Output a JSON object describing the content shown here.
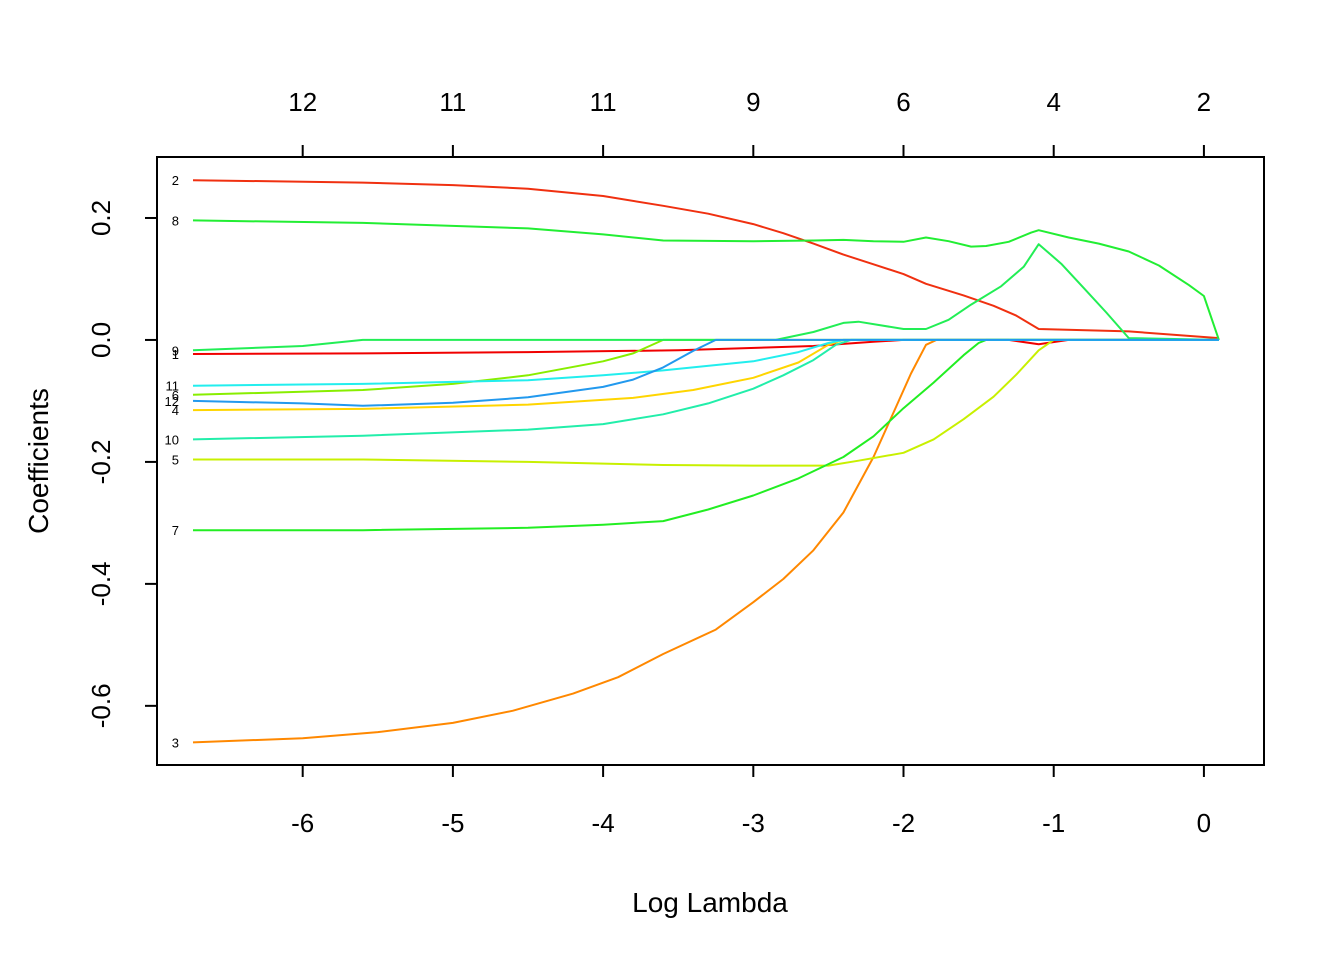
{
  "chart_data": {
    "type": "line",
    "title": "",
    "xlabel": "Log Lambda",
    "ylabel": "Coefficients",
    "xlim": [
      -6.97,
      0.4
    ],
    "ylim": [
      -0.697,
      0.3
    ],
    "x_ticks": [
      -6,
      -5,
      -4,
      -3,
      -2,
      -1,
      0
    ],
    "x_tick_labels": [
      "-6",
      "-5",
      "-4",
      "-3",
      "-2",
      "-1",
      "0"
    ],
    "y_ticks": [
      -0.6,
      -0.4,
      -0.2,
      0.0,
      0.2
    ],
    "y_tick_labels": [
      "-0.6",
      "-0.4",
      "-0.2",
      "0.0",
      "0.2"
    ],
    "top_axis": {
      "x": [
        -6,
        -5,
        -4,
        -3,
        -2,
        -1,
        0
      ],
      "labels": [
        "12",
        "11",
        "11",
        "9",
        "6",
        "4",
        "2"
      ]
    },
    "grid": false,
    "series": [
      {
        "label": "1",
        "color": "#f00000",
        "points": [
          [
            -6.73,
            -0.023
          ],
          [
            -5.6,
            -0.022
          ],
          [
            -4.5,
            -0.02
          ],
          [
            -3.5,
            -0.017
          ],
          [
            -2.6,
            -0.01
          ],
          [
            -2.2,
            -0.003
          ],
          [
            -2.0,
            0.0
          ],
          [
            -1.3,
            0.0
          ],
          [
            -1.1,
            -0.007
          ],
          [
            -0.9,
            0.0
          ],
          [
            0.1,
            0.0
          ]
        ]
      },
      {
        "label": "2",
        "color": "#f03010",
        "points": [
          [
            -6.73,
            0.262
          ],
          [
            -5.6,
            0.258
          ],
          [
            -5.0,
            0.254
          ],
          [
            -4.5,
            0.248
          ],
          [
            -4.0,
            0.236
          ],
          [
            -3.6,
            0.22
          ],
          [
            -3.3,
            0.207
          ],
          [
            -3.0,
            0.19
          ],
          [
            -2.8,
            0.175
          ],
          [
            -2.6,
            0.158
          ],
          [
            -2.4,
            0.14
          ],
          [
            -2.2,
            0.124
          ],
          [
            -2.0,
            0.108
          ],
          [
            -1.85,
            0.092
          ],
          [
            -1.6,
            0.073
          ],
          [
            -1.4,
            0.056
          ],
          [
            -1.25,
            0.04
          ],
          [
            -1.1,
            0.018
          ],
          [
            -0.5,
            0.014
          ],
          [
            0.1,
            0.003
          ]
        ]
      },
      {
        "label": "3",
        "color": "#ff8800",
        "points": [
          [
            -6.73,
            -0.66
          ],
          [
            -6.0,
            -0.653
          ],
          [
            -5.5,
            -0.643
          ],
          [
            -5.0,
            -0.628
          ],
          [
            -4.6,
            -0.608
          ],
          [
            -4.2,
            -0.58
          ],
          [
            -3.9,
            -0.553
          ],
          [
            -3.6,
            -0.515
          ],
          [
            -3.25,
            -0.475
          ],
          [
            -3.0,
            -0.43
          ],
          [
            -2.8,
            -0.392
          ],
          [
            -2.6,
            -0.345
          ],
          [
            -2.4,
            -0.283
          ],
          [
            -2.2,
            -0.192
          ],
          [
            -2.05,
            -0.11
          ],
          [
            -1.95,
            -0.055
          ],
          [
            -1.85,
            -0.008
          ],
          [
            -1.78,
            0.0
          ],
          [
            0.1,
            0.0
          ]
        ]
      },
      {
        "label": "4",
        "color": "#ffd500",
        "points": [
          [
            -6.73,
            -0.115
          ],
          [
            -5.6,
            -0.113
          ],
          [
            -4.5,
            -0.106
          ],
          [
            -3.8,
            -0.095
          ],
          [
            -3.4,
            -0.082
          ],
          [
            -3.0,
            -0.062
          ],
          [
            -2.7,
            -0.037
          ],
          [
            -2.5,
            -0.008
          ],
          [
            -2.4,
            0.0
          ],
          [
            0.1,
            0.0
          ]
        ]
      },
      {
        "label": "5",
        "color": "#c8f000",
        "points": [
          [
            -6.73,
            -0.196
          ],
          [
            -5.6,
            -0.196
          ],
          [
            -4.5,
            -0.2
          ],
          [
            -3.6,
            -0.205
          ],
          [
            -3.0,
            -0.206
          ],
          [
            -2.5,
            -0.206
          ],
          [
            -2.3,
            -0.198
          ],
          [
            -2.0,
            -0.185
          ],
          [
            -1.8,
            -0.163
          ],
          [
            -1.6,
            -0.13
          ],
          [
            -1.4,
            -0.093
          ],
          [
            -1.25,
            -0.057
          ],
          [
            -1.1,
            -0.017
          ],
          [
            -1.0,
            0.0
          ],
          [
            0.1,
            0.0
          ]
        ]
      },
      {
        "label": "6",
        "color": "#88ee00",
        "points": [
          [
            -6.73,
            -0.09
          ],
          [
            -5.6,
            -0.082
          ],
          [
            -5.0,
            -0.072
          ],
          [
            -4.5,
            -0.058
          ],
          [
            -4.0,
            -0.035
          ],
          [
            -3.8,
            -0.022
          ],
          [
            -3.6,
            0.0
          ],
          [
            0.1,
            0.0
          ]
        ]
      },
      {
        "label": "7",
        "color": "#22ee22",
        "points": [
          [
            -6.73,
            -0.312
          ],
          [
            -5.6,
            -0.312
          ],
          [
            -4.5,
            -0.308
          ],
          [
            -4.0,
            -0.303
          ],
          [
            -3.6,
            -0.297
          ],
          [
            -3.3,
            -0.278
          ],
          [
            -3.0,
            -0.255
          ],
          [
            -2.7,
            -0.227
          ],
          [
            -2.4,
            -0.192
          ],
          [
            -2.2,
            -0.158
          ],
          [
            -2.0,
            -0.112
          ],
          [
            -1.8,
            -0.07
          ],
          [
            -1.6,
            -0.025
          ],
          [
            -1.5,
            -0.005
          ],
          [
            -1.45,
            0.0
          ],
          [
            0.1,
            0.0
          ]
        ]
      },
      {
        "label": "8",
        "color": "#22ee33",
        "points": [
          [
            -6.73,
            0.196
          ],
          [
            -5.6,
            0.192
          ],
          [
            -4.5,
            0.183
          ],
          [
            -4.0,
            0.173
          ],
          [
            -3.6,
            0.163
          ],
          [
            -3.0,
            0.162
          ],
          [
            -2.6,
            0.163
          ],
          [
            -2.4,
            0.164
          ],
          [
            -2.2,
            0.162
          ],
          [
            -2.0,
            0.161
          ],
          [
            -1.85,
            0.168
          ],
          [
            -1.7,
            0.162
          ],
          [
            -1.55,
            0.153
          ],
          [
            -1.45,
            0.154
          ],
          [
            -1.3,
            0.161
          ],
          [
            -1.15,
            0.176
          ],
          [
            -1.1,
            0.18
          ],
          [
            -0.9,
            0.168
          ],
          [
            -0.7,
            0.158
          ],
          [
            -0.5,
            0.145
          ],
          [
            -0.3,
            0.122
          ],
          [
            -0.1,
            0.09
          ],
          [
            0.0,
            0.072
          ],
          [
            0.1,
            0.0
          ]
        ]
      },
      {
        "label": "9",
        "color": "#22ee55",
        "points": [
          [
            -6.73,
            -0.017
          ],
          [
            -6.0,
            -0.01
          ],
          [
            -5.6,
            0.0
          ],
          [
            -2.85,
            0.0
          ],
          [
            -2.6,
            0.013
          ],
          [
            -2.4,
            0.028
          ],
          [
            -2.3,
            0.03
          ],
          [
            -2.0,
            0.018
          ],
          [
            -1.85,
            0.018
          ],
          [
            -1.7,
            0.033
          ],
          [
            -1.55,
            0.058
          ],
          [
            -1.35,
            0.088
          ],
          [
            -1.2,
            0.12
          ],
          [
            -1.1,
            0.157
          ],
          [
            -0.95,
            0.125
          ],
          [
            -0.8,
            0.085
          ],
          [
            -0.65,
            0.045
          ],
          [
            -0.5,
            0.003
          ],
          [
            0.1,
            0.0
          ]
        ]
      },
      {
        "label": "10",
        "color": "#22eeaa",
        "points": [
          [
            -6.73,
            -0.163
          ],
          [
            -5.6,
            -0.157
          ],
          [
            -4.5,
            -0.147
          ],
          [
            -4.0,
            -0.138
          ],
          [
            -3.6,
            -0.122
          ],
          [
            -3.3,
            -0.104
          ],
          [
            -3.0,
            -0.08
          ],
          [
            -2.8,
            -0.058
          ],
          [
            -2.6,
            -0.033
          ],
          [
            -2.45,
            -0.008
          ],
          [
            -2.35,
            0.0
          ],
          [
            0.1,
            0.0
          ]
        ]
      },
      {
        "label": "11",
        "color": "#22eeee",
        "points": [
          [
            -6.73,
            -0.075
          ],
          [
            -5.6,
            -0.072
          ],
          [
            -4.5,
            -0.066
          ],
          [
            -4.0,
            -0.058
          ],
          [
            -3.6,
            -0.05
          ],
          [
            -3.0,
            -0.035
          ],
          [
            -2.7,
            -0.02
          ],
          [
            -2.5,
            -0.005
          ],
          [
            -2.4,
            0.0
          ],
          [
            0.1,
            0.0
          ]
        ]
      },
      {
        "label": "12",
        "color": "#2299ee",
        "points": [
          [
            -6.73,
            -0.1
          ],
          [
            -6.0,
            -0.104
          ],
          [
            -5.6,
            -0.108
          ],
          [
            -5.0,
            -0.103
          ],
          [
            -4.5,
            -0.094
          ],
          [
            -4.0,
            -0.077
          ],
          [
            -3.8,
            -0.065
          ],
          [
            -3.6,
            -0.045
          ],
          [
            -3.4,
            -0.018
          ],
          [
            -3.25,
            0.0
          ],
          [
            0.1,
            0.0
          ]
        ]
      }
    ]
  }
}
